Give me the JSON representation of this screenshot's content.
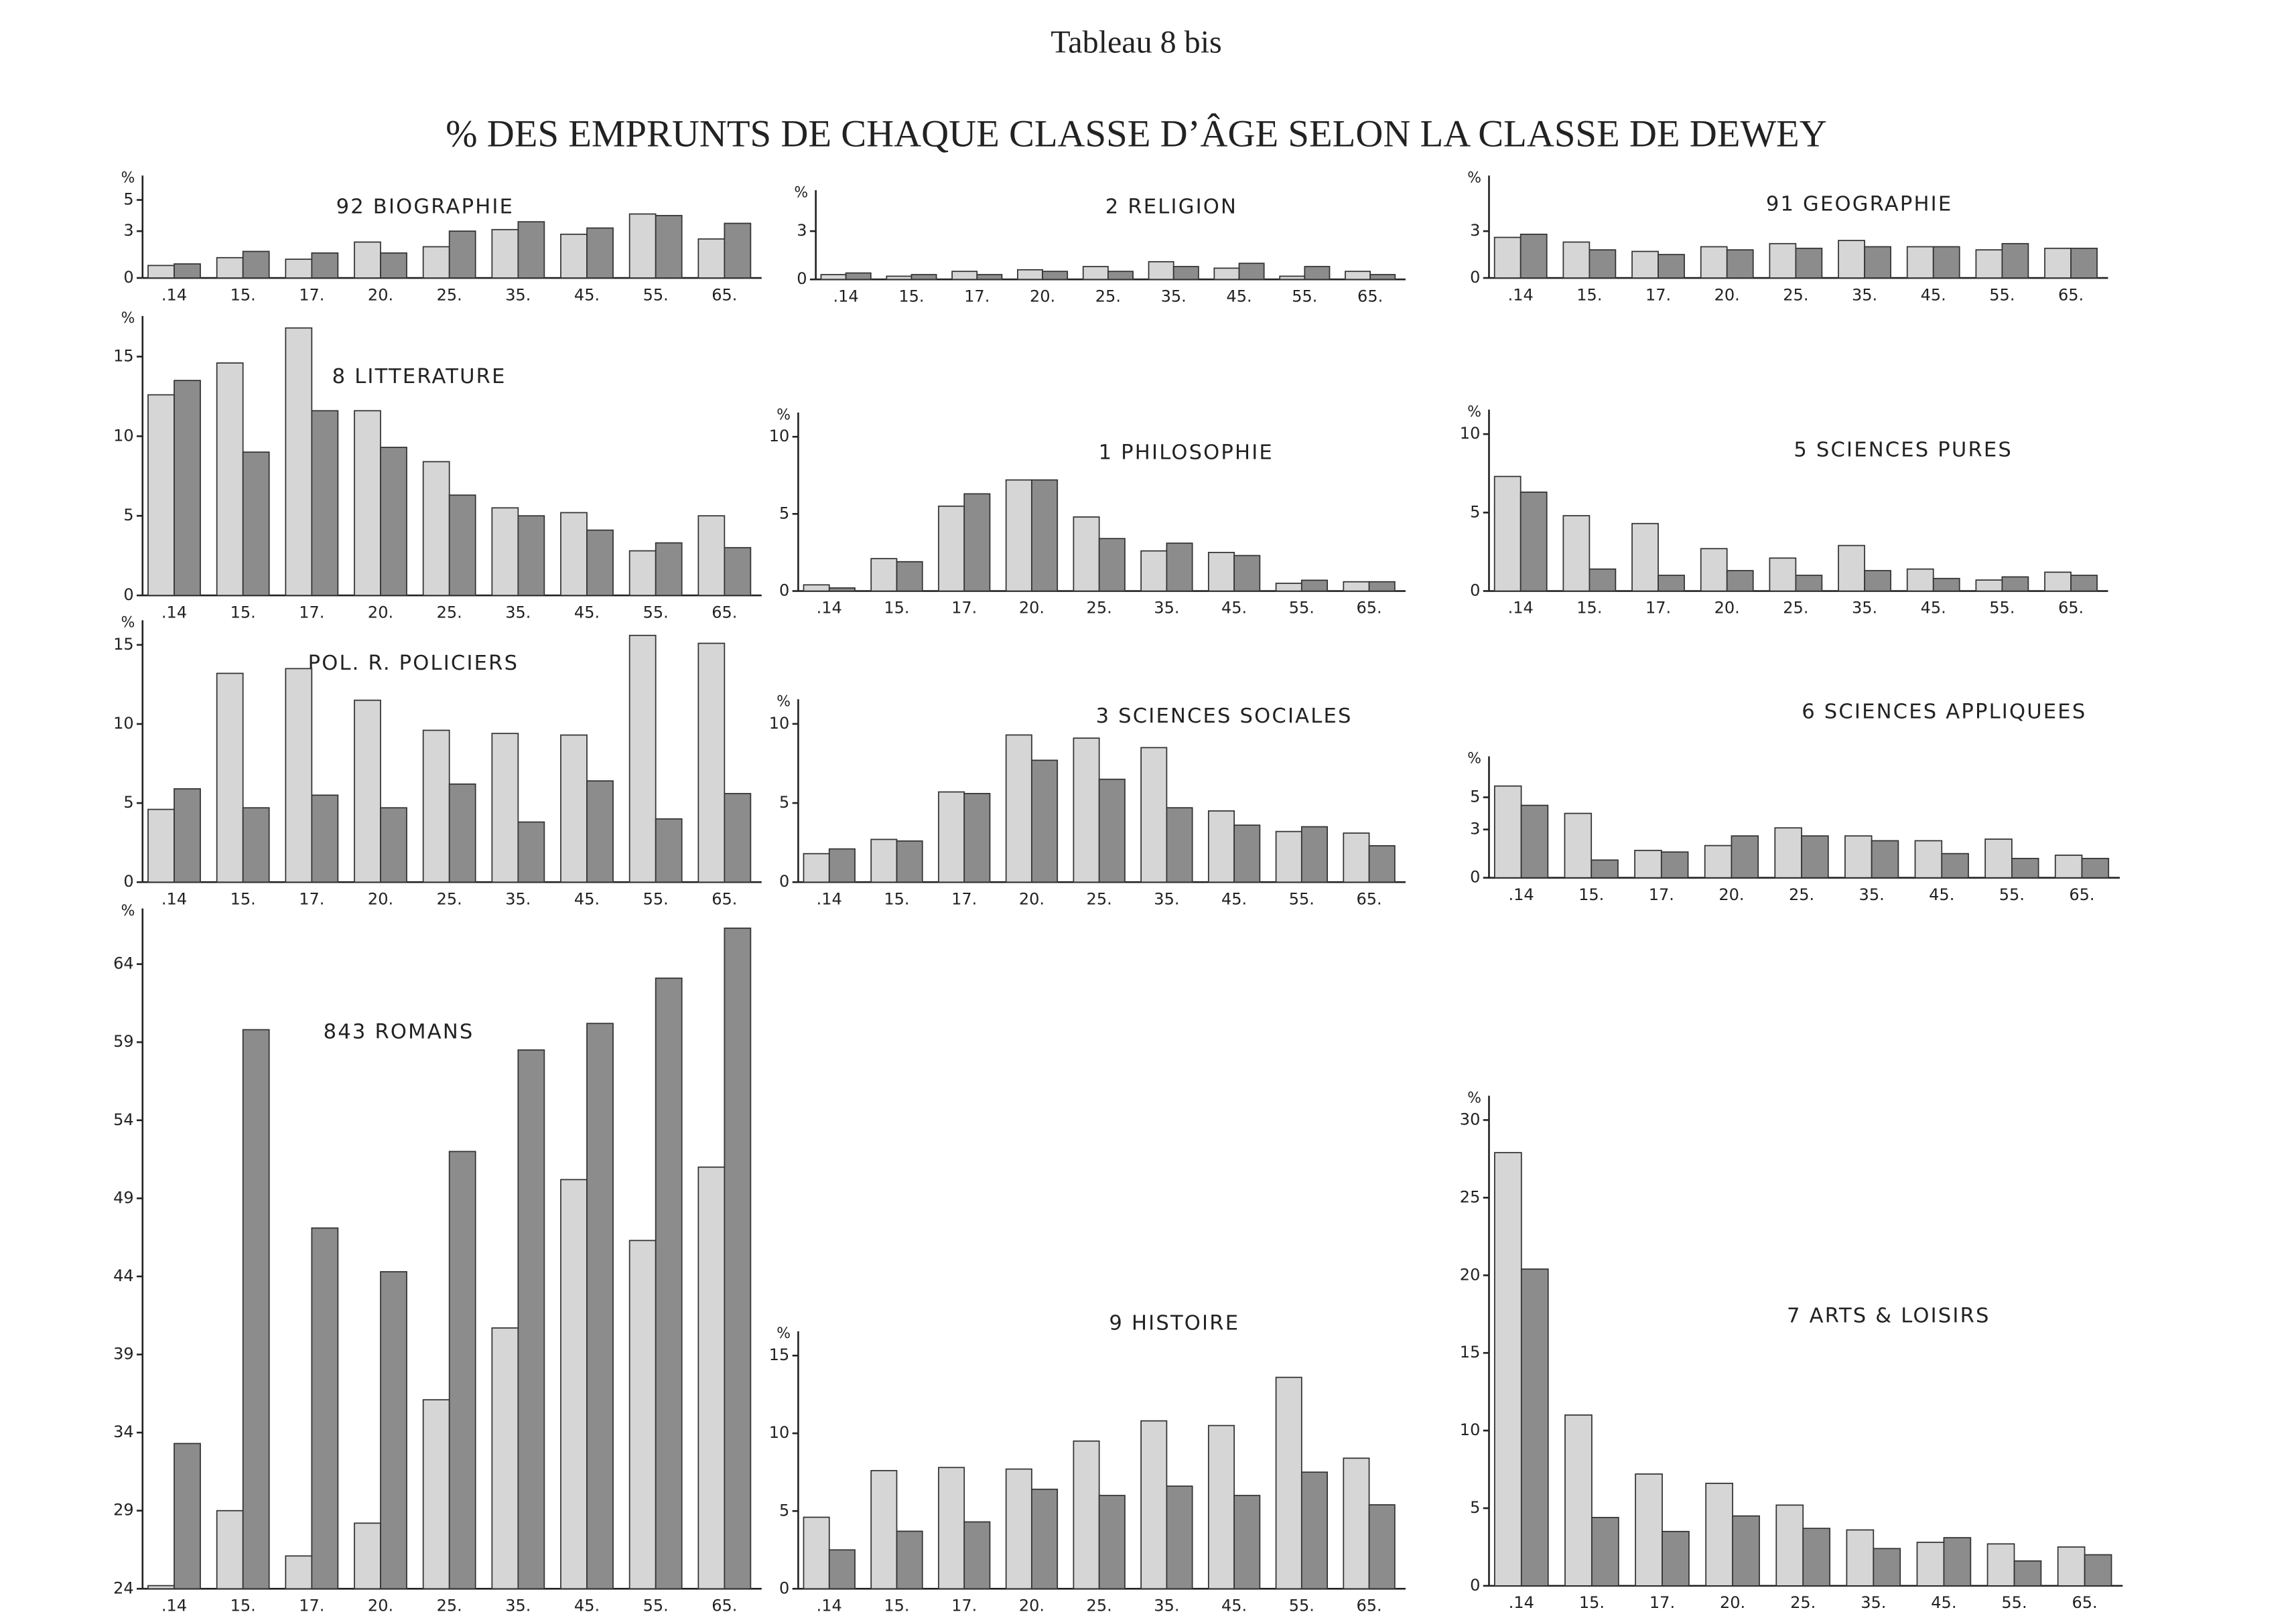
{
  "title_top": "Tableau 8 bis",
  "title": "% DES EMPRUNTS DE CHAQUE CLASSE D’ÂGE SELON LA CLASSE DE DEWEY",
  "chart_data": [
    {
      "type": "bar",
      "title": "92 BIOGRAPHIE",
      "y_label": "%",
      "categories": [
        ".14",
        "15.",
        "17.",
        "20.",
        "25.",
        "35.",
        "45.",
        "55.",
        "65."
      ],
      "series": [
        {
          "color": "#d6d6d6",
          "values": [
            0.8,
            1.3,
            1.2,
            2.3,
            2.0,
            3.1,
            2.8,
            4.1,
            2.5
          ]
        },
        {
          "color": "#8c8c8c",
          "values": [
            0.9,
            1.7,
            1.6,
            1.6,
            3.0,
            3.6,
            3.2,
            4.0,
            3.5
          ]
        }
      ],
      "ylim": [
        0,
        6
      ],
      "yticks": [
        0,
        3,
        5
      ]
    },
    {
      "type": "bar",
      "title": "2 RELIGION",
      "y_label": "%",
      "categories": [
        ".14",
        "15.",
        "17.",
        "20.",
        "25.",
        "35.",
        "45.",
        "55.",
        "65."
      ],
      "series": [
        {
          "color": "#d6d6d6",
          "values": [
            0.3,
            0.2,
            0.5,
            0.6,
            0.8,
            1.1,
            0.7,
            0.2,
            0.5
          ]
        },
        {
          "color": "#8c8c8c",
          "values": [
            0.4,
            0.3,
            0.3,
            0.5,
            0.5,
            0.8,
            1.0,
            0.8,
            0.3
          ]
        }
      ],
      "ylim": [
        0,
        5
      ],
      "yticks": [
        0,
        3
      ]
    },
    {
      "type": "bar",
      "title": "91 GEOGRAPHIE",
      "y_label": "%",
      "categories": [
        ".14",
        "15.",
        "17.",
        "20.",
        "25.",
        "35.",
        "45.",
        "55.",
        "65."
      ],
      "series": [
        {
          "color": "#d6d6d6",
          "values": [
            2.6,
            2.3,
            1.7,
            2.0,
            2.2,
            2.4,
            2.0,
            1.8,
            1.9
          ]
        },
        {
          "color": "#8c8c8c",
          "values": [
            2.8,
            1.8,
            1.5,
            1.8,
            1.9,
            2.0,
            2.0,
            2.2,
            1.9
          ]
        }
      ],
      "ylim": [
        0,
        6
      ],
      "yticks": [
        0,
        3
      ]
    },
    {
      "type": "bar",
      "title": "8 LITTERATURE",
      "y_label": "%",
      "categories": [
        ".14",
        "15.",
        "17.",
        "20.",
        "25.",
        "35.",
        "45.",
        "55.",
        "65."
      ],
      "series": [
        {
          "color": "#d6d6d6",
          "values": [
            12.6,
            14.6,
            16.8,
            11.6,
            8.4,
            5.5,
            5.2,
            2.8,
            5.0
          ]
        },
        {
          "color": "#8c8c8c",
          "values": [
            13.5,
            9.0,
            11.6,
            9.3,
            6.3,
            5.0,
            4.1,
            3.3,
            3.0
          ]
        }
      ],
      "ylim": [
        0,
        17
      ],
      "yticks": [
        0,
        5,
        10,
        15
      ]
    },
    {
      "type": "bar",
      "title": "1 PHILOSOPHIE",
      "y_label": "%",
      "categories": [
        ".14",
        "15.",
        "17.",
        "20.",
        "25.",
        "35.",
        "45.",
        "55.",
        "65."
      ],
      "series": [
        {
          "color": "#d6d6d6",
          "values": [
            0.4,
            2.1,
            5.5,
            7.2,
            4.8,
            2.6,
            2.5,
            0.5,
            0.6
          ]
        },
        {
          "color": "#8c8c8c",
          "values": [
            0.2,
            1.9,
            6.3,
            7.2,
            3.4,
            3.1,
            2.3,
            0.7,
            0.6
          ]
        }
      ],
      "ylim": [
        0,
        11
      ],
      "yticks": [
        0,
        5,
        10
      ]
    },
    {
      "type": "bar",
      "title": "5 SCIENCES PURES",
      "y_label": "%",
      "categories": [
        ".14",
        "15.",
        "17.",
        "20.",
        "25.",
        "35.",
        "45.",
        "55.",
        "65."
      ],
      "series": [
        {
          "color": "#d6d6d6",
          "values": [
            7.3,
            4.8,
            4.3,
            2.7,
            2.1,
            2.9,
            1.4,
            0.7,
            1.2
          ]
        },
        {
          "color": "#8c8c8c",
          "values": [
            6.3,
            1.4,
            1.0,
            1.3,
            1.0,
            1.3,
            0.8,
            0.9,
            1.0
          ]
        }
      ],
      "ylim": [
        0,
        11
      ],
      "yticks": [
        0,
        5,
        10
      ]
    },
    {
      "type": "bar",
      "title": "POL. R. POLICIERS",
      "y_label": "%",
      "categories": [
        ".14",
        "15.",
        "17.",
        "20.",
        "25.",
        "35.",
        "45.",
        "55.",
        "65."
      ],
      "series": [
        {
          "color": "#d6d6d6",
          "values": [
            4.6,
            13.2,
            13.5,
            11.5,
            9.6,
            9.4,
            9.3,
            15.6,
            15.1
          ]
        },
        {
          "color": "#8c8c8c",
          "values": [
            5.9,
            4.7,
            5.5,
            4.7,
            6.2,
            3.8,
            6.4,
            4.0,
            5.6
          ]
        }
      ],
      "ylim": [
        0,
        16
      ],
      "yticks": [
        0,
        5,
        10,
        15
      ]
    },
    {
      "type": "bar",
      "title": "3 SCIENCES SOCIALES",
      "y_label": "%",
      "categories": [
        ".14",
        "15.",
        "17.",
        "20.",
        "25.",
        "35.",
        "45.",
        "55.",
        "65."
      ],
      "series": [
        {
          "color": "#d6d6d6",
          "values": [
            1.8,
            2.7,
            5.7,
            9.3,
            9.1,
            8.5,
            4.5,
            3.2,
            3.1
          ]
        },
        {
          "color": "#8c8c8c",
          "values": [
            2.1,
            2.6,
            5.6,
            7.7,
            6.5,
            4.7,
            3.6,
            3.5,
            2.3
          ]
        }
      ],
      "ylim": [
        0,
        11
      ],
      "yticks": [
        0,
        5,
        10
      ]
    },
    {
      "type": "bar",
      "title": "6 SCIENCES APPLIQUEES",
      "y_label": "%",
      "categories": [
        ".14",
        "15.",
        "17.",
        "20.",
        "25.",
        "35.",
        "45.",
        "55.",
        "65."
      ],
      "series": [
        {
          "color": "#d6d6d6",
          "values": [
            5.7,
            4.0,
            1.7,
            2.0,
            3.1,
            2.6,
            2.3,
            2.4,
            1.4
          ]
        },
        {
          "color": "#8c8c8c",
          "values": [
            4.5,
            1.1,
            1.6,
            2.6,
            2.6,
            2.3,
            1.5,
            1.2,
            1.2
          ]
        }
      ],
      "ylim": [
        0,
        7
      ],
      "yticks": [
        0,
        3,
        5
      ]
    },
    {
      "type": "bar",
      "title": "843 ROMANS",
      "y_label": "%",
      "categories": [
        ".14",
        "15.",
        "17.",
        "20.",
        "25.",
        "35.",
        "45.",
        "55.",
        "65."
      ],
      "series": [
        {
          "color": "#d6d6d6",
          "values": [
            24.2,
            29.0,
            26.1,
            28.2,
            36.1,
            40.7,
            50.2,
            46.3,
            51.0
          ]
        },
        {
          "color": "#8c8c8c",
          "values": [
            33.3,
            59.8,
            47.1,
            44.3,
            52.0,
            58.5,
            60.2,
            63.1,
            66.3
          ]
        }
      ],
      "ylim": [
        24,
        67
      ],
      "yticks": [
        24,
        29,
        34,
        39,
        44,
        49,
        54,
        59,
        64
      ]
    },
    {
      "type": "bar",
      "title": "9 HISTOIRE",
      "y_label": "%",
      "categories": [
        ".14",
        "15.",
        "17.",
        "20.",
        "25.",
        "35.",
        "45.",
        "55.",
        "65."
      ],
      "series": [
        {
          "color": "#d6d6d6",
          "values": [
            4.6,
            7.6,
            7.8,
            7.7,
            9.5,
            10.8,
            10.5,
            13.6,
            8.4
          ]
        },
        {
          "color": "#8c8c8c",
          "values": [
            2.5,
            3.7,
            4.3,
            6.4,
            6.0,
            6.6,
            6.0,
            7.5,
            5.4
          ]
        }
      ],
      "ylim": [
        0,
        16
      ],
      "yticks": [
        0,
        5,
        10,
        15
      ]
    },
    {
      "type": "bar",
      "title": "7 ARTS & LOISIRS",
      "y_label": "%",
      "categories": [
        ".14",
        "15.",
        "17.",
        "20.",
        "25.",
        "35.",
        "45.",
        "55.",
        "65."
      ],
      "series": [
        {
          "color": "#d6d6d6",
          "values": [
            27.9,
            11.0,
            7.2,
            6.6,
            5.2,
            3.6,
            2.8,
            2.7,
            2.5
          ]
        },
        {
          "color": "#8c8c8c",
          "values": [
            20.4,
            4.4,
            3.5,
            4.5,
            3.7,
            2.4,
            3.1,
            1.6,
            2.0
          ]
        }
      ],
      "ylim": [
        0,
        31
      ],
      "yticks": [
        0,
        5,
        10,
        15,
        20,
        25,
        30
      ]
    }
  ]
}
